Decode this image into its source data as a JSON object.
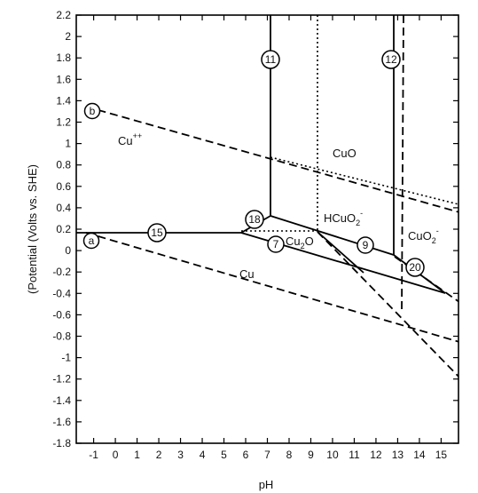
{
  "diagram": {
    "x_axis": {
      "label": "pH",
      "tick_labels": [
        "-1",
        "0",
        "1",
        "2",
        "3",
        "4",
        "5",
        "6",
        "7",
        "8",
        "9",
        "10",
        "11",
        "12",
        "13",
        "14",
        "15"
      ],
      "range": [
        -1.8,
        15.8
      ]
    },
    "y_axis": {
      "label": "(Potential (Volts vs. SHE)",
      "tick_labels": [
        "2.2",
        "2",
        "1.8",
        "1.6",
        "1.4",
        "1.2",
        "1",
        "0.8",
        "0.6",
        "0.4",
        "0.2",
        "0",
        "-0.2",
        "-0.4",
        "-0.6",
        "-0.8",
        "-1",
        "-1.2",
        "-1.4",
        "-1.6",
        "-1.8"
      ],
      "range": [
        -1.8,
        2.2
      ]
    },
    "regions": {
      "cu_pp": "Cu",
      "cu_pp_sup": "++",
      "cuo": "CuO",
      "hcuo2_a": "HCuO",
      "hcuo2_sub": "2",
      "hcuo2_sup": "-",
      "cu2o_a": "Cu",
      "cu2o_sub": "2",
      "cu2o_b": "O",
      "cuo2_a": "CuO",
      "cuo2_sub": "2",
      "cuo2_sup": "-",
      "cu": "Cu"
    },
    "markers": {
      "a": "a",
      "b": "b",
      "m7": "7",
      "m9": "9",
      "m11": "11",
      "m12": "12",
      "m15": "15",
      "m18": "18",
      "m20": "20"
    }
  }
}
